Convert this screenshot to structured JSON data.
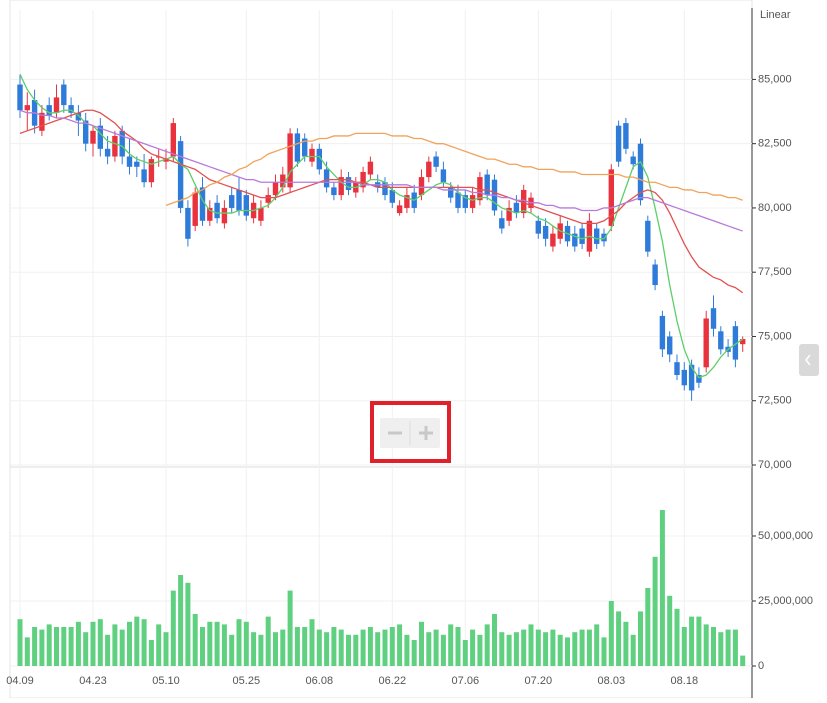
{
  "chart_data": [
    {
      "type": "candlestick",
      "scale_label": "Linear",
      "categories": [
        "04.09",
        null,
        null,
        null,
        null,
        null,
        null,
        null,
        null,
        null,
        "04.23",
        null,
        null,
        null,
        null,
        null,
        null,
        null,
        null,
        null,
        "05.10",
        null,
        null,
        null,
        null,
        null,
        null,
        null,
        null,
        null,
        null,
        "05.25",
        null,
        null,
        null,
        null,
        null,
        null,
        null,
        null,
        null,
        "06.08",
        null,
        null,
        null,
        null,
        null,
        null,
        null,
        null,
        null,
        "06.22",
        null,
        null,
        null,
        null,
        null,
        null,
        null,
        null,
        null,
        "07.06",
        null,
        null,
        null,
        null,
        null,
        null,
        null,
        null,
        null,
        "07.20",
        null,
        null,
        null,
        null,
        null,
        null,
        null,
        null,
        null,
        "08.03",
        null,
        null,
        null,
        null,
        null,
        null,
        null,
        null,
        null,
        "08.18",
        null,
        null,
        null,
        null,
        null,
        null,
        null,
        null
      ],
      "open": [
        84800,
        83800,
        84200,
        83000,
        84000,
        83700,
        84800,
        84000,
        83700,
        83400,
        82500,
        83200,
        82300,
        82000,
        83000,
        82000,
        81800,
        81500,
        81000,
        82000,
        81800,
        82000,
        82600,
        80000,
        79300,
        80800,
        79500,
        80200,
        79400,
        80500,
        80700,
        80500,
        79600,
        79500,
        80200,
        80500,
        80800,
        80800,
        82900,
        82700,
        81800,
        82300,
        81500,
        80800,
        80500,
        81200,
        80600,
        80800,
        81300,
        81000,
        81000,
        80700,
        79800,
        80000,
        80600,
        80500,
        81200,
        82000,
        81500,
        80800,
        80600,
        80500,
        80000,
        80300,
        81300,
        81100,
        79600,
        79500,
        80200,
        79800,
        80000,
        79500,
        79300,
        78500,
        78800,
        79300,
        79000,
        79200,
        78300,
        79200,
        79000,
        79300,
        83200,
        83300,
        82000,
        82500,
        79500,
        77800,
        75800,
        75000,
        74000,
        73700,
        73900,
        73500,
        73800,
        76100,
        75200,
        74600,
        75400,
        74700
      ],
      "high": [
        85200,
        84500,
        84600,
        84000,
        84300,
        84800,
        85000,
        84300,
        84000,
        83700,
        83200,
        83500,
        82800,
        83000,
        83200,
        82700,
        82000,
        82100,
        82000,
        82300,
        82300,
        83500,
        82800,
        80300,
        80800,
        81200,
        80300,
        80500,
        80300,
        80800,
        81200,
        80700,
        80500,
        80300,
        80800,
        81300,
        81600,
        83100,
        83100,
        82900,
        82500,
        82500,
        81800,
        81000,
        81500,
        81400,
        81200,
        81600,
        82000,
        81300,
        81200,
        81000,
        80300,
        80800,
        80900,
        81500,
        82000,
        82200,
        81800,
        81000,
        80900,
        80700,
        80800,
        81400,
        81500,
        81300,
        79900,
        80300,
        80500,
        80900,
        80600,
        79700,
        79600,
        79300,
        79700,
        79500,
        79300,
        79400,
        79800,
        79400,
        79200,
        81700,
        83400,
        83500,
        82200,
        82700,
        79700,
        78000,
        76000,
        75200,
        74300,
        74000,
        74100,
        73800,
        76000,
        76600,
        75400,
        74900,
        75600,
        75000
      ],
      "low": [
        83500,
        83000,
        82900,
        82800,
        83400,
        83500,
        83700,
        83500,
        82800,
        82200,
        82000,
        82000,
        81700,
        81800,
        81700,
        81300,
        81200,
        80800,
        80800,
        81600,
        81500,
        81800,
        79800,
        78500,
        79100,
        79300,
        79300,
        79400,
        79200,
        79800,
        79700,
        79500,
        79400,
        79300,
        80000,
        80300,
        80600,
        80600,
        81600,
        81800,
        81600,
        81300,
        80600,
        80300,
        80300,
        80500,
        80400,
        80600,
        81100,
        80600,
        80300,
        80000,
        79700,
        79800,
        79800,
        80300,
        81000,
        81400,
        80800,
        80200,
        79800,
        79800,
        79800,
        80100,
        80300,
        79700,
        79000,
        79300,
        79600,
        79600,
        79800,
        78800,
        78500,
        78300,
        78600,
        78500,
        78300,
        78400,
        78100,
        78400,
        78500,
        79100,
        81600,
        82100,
        81500,
        80100,
        78100,
        76800,
        74200,
        74000,
        73300,
        72900,
        72500,
        73000,
        73600,
        75000,
        74300,
        74200,
        73800,
        74400
      ],
      "close": [
        83800,
        84000,
        83200,
        83700,
        83600,
        84300,
        84000,
        83700,
        83400,
        82500,
        83000,
        82300,
        82000,
        82800,
        82000,
        81600,
        81600,
        81000,
        81900,
        82000,
        81900,
        83300,
        80000,
        78800,
        80600,
        79500,
        80000,
        79600,
        80000,
        80000,
        79900,
        79700,
        80200,
        80000,
        80500,
        81000,
        81300,
        82900,
        81800,
        82000,
        82300,
        81500,
        80800,
        80500,
        81200,
        80700,
        81000,
        81400,
        81800,
        80800,
        80500,
        80200,
        80100,
        80500,
        80000,
        81200,
        81800,
        81600,
        81000,
        80400,
        80000,
        80000,
        80500,
        81200,
        80500,
        79900,
        79200,
        80000,
        79800,
        80700,
        80400,
        79000,
        78800,
        79000,
        79400,
        78700,
        78500,
        78600,
        79500,
        78600,
        78700,
        81500,
        81800,
        82300,
        81700,
        80300,
        78300,
        77000,
        74500,
        74300,
        73500,
        73100,
        72900,
        73200,
        75700,
        75300,
        74500,
        74400,
        74100,
        74900
      ],
      "up_color": "#e8333f",
      "down_color": "#2f7bd9",
      "series": [
        {
          "color": "#5ccf6a",
          "values": [
            85200,
            84600,
            84200,
            83900,
            83700,
            83700,
            83800,
            83800,
            83600,
            83300,
            83200,
            82900,
            82600,
            82500,
            82400,
            82100,
            81900,
            81800,
            81700,
            81800,
            81900,
            82000,
            81700,
            81500,
            80900,
            80300,
            79900,
            79800,
            79800,
            79800,
            79900,
            79900,
            79900,
            80000,
            80100,
            80400,
            80800,
            81400,
            81700,
            82000,
            82000,
            82000,
            81600,
            81300,
            81000,
            80800,
            80800,
            80900,
            81100,
            81100,
            81000,
            80700,
            80500,
            80400,
            80300,
            80500,
            80700,
            80900,
            81000,
            80900,
            80600,
            80400,
            80300,
            80400,
            80400,
            80200,
            80000,
            79900,
            79800,
            79900,
            79800,
            79600,
            79500,
            79300,
            79100,
            79000,
            78900,
            78800,
            78900,
            78800,
            78800,
            79200,
            80000,
            80800,
            81600,
            81800,
            81200,
            80000,
            78700,
            77000,
            75600,
            74500,
            73800,
            73400,
            73500,
            73800,
            74200,
            74500,
            74700,
            74900
          ]
        },
        {
          "color": "#e35050",
          "values": [
            82900,
            83000,
            83100,
            83200,
            83300,
            83400,
            83500,
            83600,
            83700,
            83800,
            83800,
            83700,
            83500,
            83300,
            83000,
            82800,
            82600,
            82300,
            82100,
            82000,
            81900,
            81800,
            81700,
            81600,
            81500,
            81300,
            81100,
            81000,
            80900,
            80800,
            80700,
            80600,
            80500,
            80400,
            80400,
            80400,
            80500,
            80600,
            80700,
            80800,
            80900,
            81000,
            81100,
            81100,
            81100,
            81100,
            81000,
            81000,
            80900,
            80800,
            80800,
            80800,
            80800,
            80800,
            80800,
            80800,
            80800,
            80800,
            80800,
            80800,
            80800,
            80800,
            80800,
            80700,
            80700,
            80600,
            80500,
            80400,
            80300,
            80200,
            80100,
            80000,
            79900,
            79800,
            79700,
            79600,
            79500,
            79400,
            79400,
            79400,
            79500,
            79700,
            79900,
            80200,
            80400,
            80600,
            80700,
            80600,
            80300,
            79800,
            79200,
            78600,
            78100,
            77700,
            77500,
            77300,
            77200,
            77000,
            76900,
            76700
          ]
        },
        {
          "color": "#b87ad9",
          "values": [
            83800,
            83700,
            83700,
            83600,
            83600,
            83500,
            83500,
            83400,
            83300,
            83300,
            83200,
            83100,
            83000,
            82900,
            82800,
            82700,
            82600,
            82500,
            82400,
            82300,
            82200,
            82100,
            82000,
            81900,
            81800,
            81700,
            81600,
            81500,
            81400,
            81300,
            81200,
            81100,
            81100,
            81000,
            81000,
            81000,
            81000,
            81000,
            81000,
            81000,
            81000,
            81000,
            81000,
            81000,
            81000,
            81000,
            81000,
            80900,
            80900,
            80900,
            80900,
            80900,
            80900,
            80900,
            80800,
            80800,
            80800,
            80800,
            80700,
            80700,
            80700,
            80700,
            80600,
            80600,
            80500,
            80500,
            80400,
            80400,
            80300,
            80300,
            80200,
            80200,
            80100,
            80100,
            80000,
            80000,
            80000,
            79900,
            79900,
            79900,
            80000,
            80000,
            80100,
            80200,
            80300,
            80400,
            80400,
            80300,
            80200,
            80100,
            80000,
            79900,
            79800,
            79700,
            79600,
            79500,
            79400,
            79300,
            79200,
            79100
          ]
        },
        {
          "color": "#f0a35a",
          "values": [
            null,
            null,
            null,
            null,
            null,
            null,
            null,
            null,
            null,
            null,
            null,
            null,
            null,
            null,
            null,
            null,
            null,
            null,
            null,
            null,
            80100,
            80200,
            80300,
            80400,
            80600,
            80700,
            80900,
            81000,
            81200,
            81300,
            81500,
            81600,
            81800,
            81900,
            82100,
            82200,
            82300,
            82400,
            82500,
            82600,
            82600,
            82700,
            82700,
            82800,
            82800,
            82800,
            82900,
            82900,
            82900,
            82900,
            82900,
            82800,
            82800,
            82800,
            82700,
            82700,
            82600,
            82500,
            82500,
            82400,
            82300,
            82200,
            82100,
            82000,
            81900,
            81900,
            81800,
            81700,
            81700,
            81600,
            81600,
            81500,
            81500,
            81500,
            81400,
            81400,
            81400,
            81300,
            81300,
            81300,
            81300,
            81300,
            81300,
            81200,
            81200,
            81100,
            81000,
            81000,
            80900,
            80800,
            80800,
            80700,
            80700,
            80600,
            80600,
            80500,
            80500,
            80400,
            80400,
            80300
          ]
        }
      ],
      "ylim": [
        70000,
        87700
      ],
      "yticks": [
        {
          "value": 70000,
          "label": "70,000"
        },
        {
          "value": 72500,
          "label": "72,500"
        },
        {
          "value": 75000,
          "label": "75,000"
        },
        {
          "value": 77500,
          "label": "77,500"
        },
        {
          "value": 80000,
          "label": "80,000"
        },
        {
          "value": 82500,
          "label": "82,500"
        },
        {
          "value": 85000,
          "label": "85,000"
        }
      ],
      "grid": true
    },
    {
      "type": "bar",
      "color": "#5fcf80",
      "values": [
        18000000,
        11000000,
        15000000,
        14000000,
        16000000,
        15000000,
        15000000,
        15000000,
        17000000,
        13000000,
        17000000,
        18000000,
        12000000,
        16000000,
        14000000,
        17000000,
        19000000,
        18000000,
        10000000,
        16000000,
        13000000,
        29000000,
        35000000,
        32000000,
        20000000,
        15000000,
        17000000,
        17000000,
        16000000,
        12000000,
        18000000,
        17000000,
        13000000,
        12000000,
        19000000,
        13000000,
        14000000,
        29000000,
        15000000,
        15000000,
        18000000,
        14000000,
        13000000,
        15000000,
        14000000,
        12000000,
        12000000,
        14000000,
        15000000,
        13000000,
        14000000,
        15000000,
        16000000,
        12000000,
        10000000,
        17000000,
        13000000,
        14000000,
        12000000,
        16000000,
        15000000,
        10000000,
        14000000,
        12000000,
        16000000,
        20000000,
        13000000,
        12000000,
        13000000,
        14000000,
        16000000,
        14000000,
        13000000,
        14000000,
        12000000,
        11000000,
        13000000,
        14000000,
        14000000,
        16000000,
        11000000,
        25000000,
        21000000,
        17000000,
        12000000,
        21000000,
        30000000,
        42000000,
        60000000,
        27000000,
        22000000,
        15000000,
        19000000,
        19000000,
        16000000,
        15000000,
        13000000,
        14000000,
        14000000,
        4000000
      ],
      "ylim": [
        0,
        75000000
      ],
      "yticks": [
        0,
        {
          "value": 25000000,
          "label": "25,000,000"
        },
        {
          "value": 50000000,
          "label": "50,000,000"
        }
      ]
    }
  ]
}
